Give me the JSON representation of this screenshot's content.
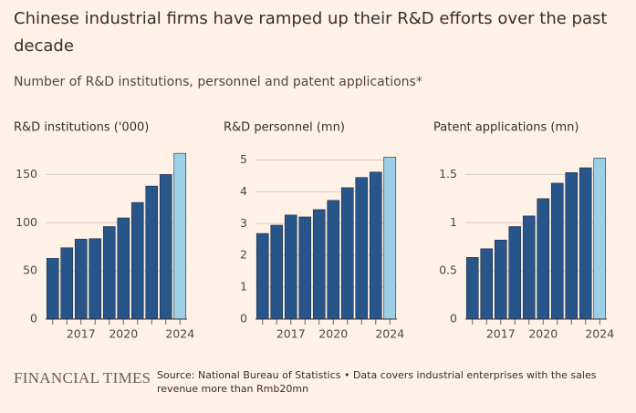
{
  "title": "Chinese industrial firms have ramped up their R&D efforts over the past decade",
  "subtitle": "Number of R&D institutions, personnel and patent applications*",
  "brand": "FINANCIAL TIMES",
  "source": "Source: National Bureau of Statistics • Data covers industrial enterprises with the sales revenue more than Rmb20mn",
  "chart_data": [
    {
      "type": "bar",
      "title": "R&D institutions ('000)",
      "categories": [
        null,
        null,
        "2017",
        null,
        null,
        "2020",
        null,
        null,
        null,
        "2024"
      ],
      "values": [
        63,
        74,
        83,
        83.5,
        96,
        105,
        121,
        138,
        150,
        172
      ],
      "colors": [
        "#28558a",
        "#28558a",
        "#28558a",
        "#28558a",
        "#28558a",
        "#28558a",
        "#28558a",
        "#28558a",
        "#28558a",
        "#9dd0e6"
      ],
      "ylim": [
        0,
        175
      ],
      "yticks": [
        0,
        50,
        100,
        150
      ],
      "grid": true
    },
    {
      "type": "bar",
      "title": "R&D personnel (mn)",
      "categories": [
        null,
        null,
        "2017",
        null,
        null,
        "2020",
        null,
        null,
        null,
        "2024"
      ],
      "values": [
        2.69,
        2.95,
        3.27,
        3.21,
        3.44,
        3.73,
        4.13,
        4.45,
        4.62,
        5.09
      ],
      "colors": [
        "#28558a",
        "#28558a",
        "#28558a",
        "#28558a",
        "#28558a",
        "#28558a",
        "#28558a",
        "#28558a",
        "#28558a",
        "#9dd0e6"
      ],
      "ylim": [
        0,
        5.3
      ],
      "yticks": [
        0,
        1,
        2,
        3,
        4,
        5
      ],
      "grid": true
    },
    {
      "type": "bar",
      "title": "Patent applications (mn)",
      "categories": [
        null,
        null,
        "2017",
        null,
        null,
        "2020",
        null,
        null,
        null,
        "2024"
      ],
      "values": [
        0.64,
        0.73,
        0.82,
        0.96,
        1.07,
        1.25,
        1.41,
        1.52,
        1.57,
        1.67
      ],
      "colors": [
        "#28558a",
        "#28558a",
        "#28558a",
        "#28558a",
        "#28558a",
        "#28558a",
        "#28558a",
        "#28558a",
        "#28558a",
        "#9dd0e6"
      ],
      "ylim": [
        0,
        1.75
      ],
      "yticks": [
        0,
        0.5,
        1,
        1.5
      ],
      "grid": true
    }
  ]
}
